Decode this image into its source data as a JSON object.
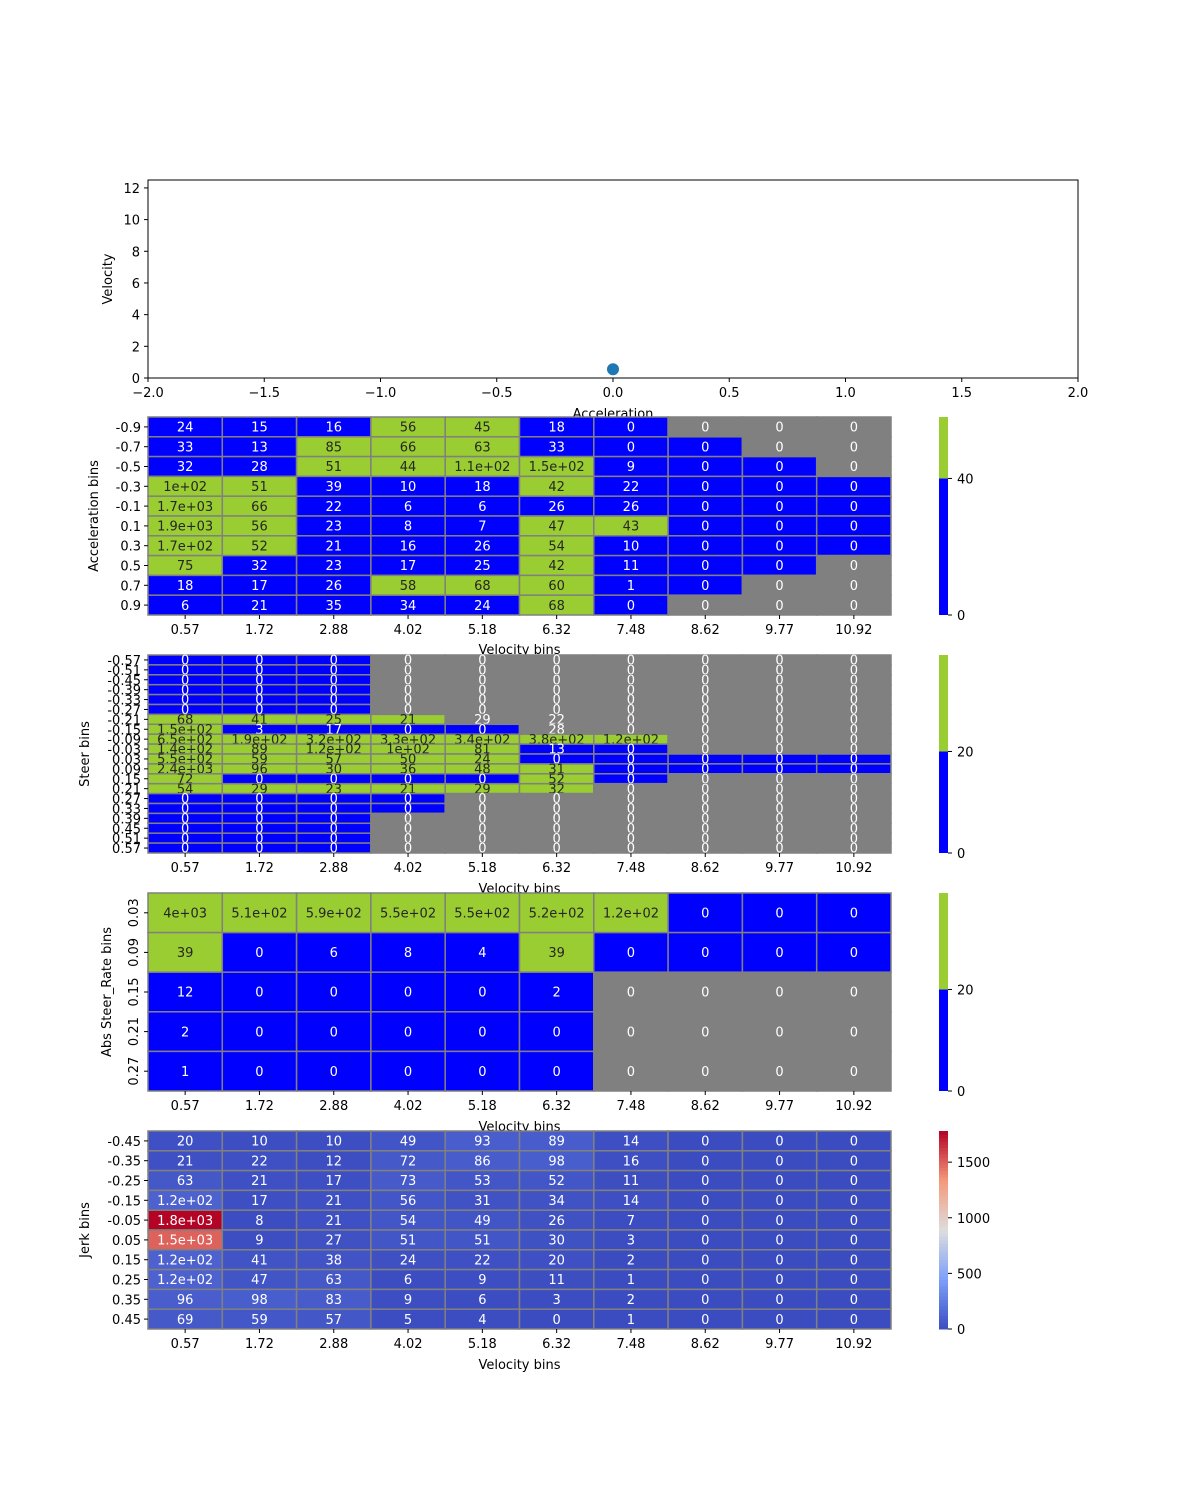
{
  "chart_data": [
    {
      "type": "scatter",
      "xlabel": "Acceleration",
      "ylabel": "Velocity",
      "xlim": [
        -2,
        2
      ],
      "ylim": [
        0,
        12.5
      ],
      "xticks": [
        "−2.0",
        "−1.5",
        "−1.0",
        "−0.5",
        "0.0",
        "0.5",
        "1.0",
        "1.5",
        "2.0"
      ],
      "yticks": [
        "0",
        "2",
        "4",
        "6",
        "8",
        "10",
        "12"
      ],
      "points": [
        {
          "x": 0.0,
          "y": 0.55
        }
      ],
      "point_color": "#1f77b4"
    },
    {
      "type": "heatmap",
      "xlabel": "Velocity bins",
      "ylabel": "Acceleration bins",
      "x_categories": [
        "0.57",
        "1.72",
        "2.88",
        "4.02",
        "5.18",
        "6.32",
        "7.48",
        "8.62",
        "9.77",
        "10.92"
      ],
      "y_categories": [
        "-0.9",
        "-0.7",
        "-0.5",
        "-0.3",
        "-0.1",
        "0.1",
        "0.3",
        "0.5",
        "0.7",
        "0.9"
      ],
      "labels": [
        [
          "24",
          "15",
          "16",
          "56",
          "45",
          "18",
          "0",
          "0",
          "0",
          "0"
        ],
        [
          "33",
          "13",
          "85",
          "66",
          "63",
          "33",
          "0",
          "0",
          "0",
          "0"
        ],
        [
          "32",
          "28",
          "51",
          "44",
          "1.1e+02",
          "1.5e+02",
          "9",
          "0",
          "0",
          "0"
        ],
        [
          "1e+02",
          "51",
          "39",
          "10",
          "18",
          "42",
          "22",
          "0",
          "0",
          "0"
        ],
        [
          "1.7e+03",
          "66",
          "22",
          "6",
          "6",
          "26",
          "26",
          "0",
          "0",
          "0"
        ],
        [
          "1.9e+03",
          "56",
          "23",
          "8",
          "7",
          "47",
          "43",
          "0",
          "0",
          "0"
        ],
        [
          "1.7e+02",
          "52",
          "21",
          "16",
          "26",
          "54",
          "10",
          "0",
          "0",
          "0"
        ],
        [
          "75",
          "32",
          "23",
          "17",
          "25",
          "42",
          "11",
          "0",
          "0",
          "0"
        ],
        [
          "18",
          "17",
          "26",
          "58",
          "68",
          "60",
          "1",
          "0",
          "0",
          "0"
        ],
        [
          "6",
          "21",
          "35",
          "34",
          "24",
          "68",
          "0",
          "0",
          "0",
          "0"
        ]
      ],
      "masked": [
        [
          0,
          0,
          0,
          0,
          0,
          0,
          0,
          1,
          1,
          1
        ],
        [
          0,
          0,
          0,
          0,
          0,
          0,
          0,
          0,
          1,
          1
        ],
        [
          0,
          0,
          0,
          0,
          0,
          0,
          0,
          0,
          0,
          1
        ],
        [
          0,
          0,
          0,
          0,
          0,
          0,
          0,
          0,
          0,
          0
        ],
        [
          0,
          0,
          0,
          0,
          0,
          0,
          0,
          0,
          0,
          0
        ],
        [
          0,
          0,
          0,
          0,
          0,
          0,
          0,
          0,
          0,
          0
        ],
        [
          0,
          0,
          0,
          0,
          0,
          0,
          0,
          0,
          0,
          0
        ],
        [
          0,
          0,
          0,
          0,
          0,
          0,
          0,
          0,
          0,
          1
        ],
        [
          0,
          0,
          0,
          0,
          0,
          0,
          0,
          0,
          1,
          1
        ],
        [
          0,
          0,
          0,
          0,
          0,
          0,
          0,
          1,
          1,
          1
        ]
      ],
      "threshold": 40,
      "colorbar_ticks": [
        "0",
        "40"
      ],
      "colorbar_range": [
        0,
        58
      ]
    },
    {
      "type": "heatmap",
      "xlabel": "Velocity bins",
      "ylabel": "Steer bins",
      "x_categories": [
        "0.57",
        "1.72",
        "2.88",
        "4.02",
        "5.18",
        "6.32",
        "7.48",
        "8.62",
        "9.77",
        "10.92"
      ],
      "y_categories": [
        "-0.57",
        "-0.51",
        "-0.45",
        "-0.39",
        "-0.33",
        "-0.27",
        "-0.21",
        "-0.15",
        "-0.09",
        "-0.03",
        "0.03",
        "0.09",
        "0.15",
        "0.21",
        "0.27",
        "0.33",
        "0.39",
        "0.45",
        "0.51",
        "0.57"
      ],
      "labels": [
        [
          "0",
          "0",
          "0",
          "0",
          "0",
          "0",
          "0",
          "0",
          "0",
          "0"
        ],
        [
          "0",
          "0",
          "0",
          "0",
          "0",
          "0",
          "0",
          "0",
          "0",
          "0"
        ],
        [
          "0",
          "0",
          "0",
          "0",
          "0",
          "0",
          "0",
          "0",
          "0",
          "0"
        ],
        [
          "0",
          "0",
          "0",
          "0",
          "0",
          "0",
          "0",
          "0",
          "0",
          "0"
        ],
        [
          "0",
          "0",
          "0",
          "0",
          "0",
          "0",
          "0",
          "0",
          "0",
          "0"
        ],
        [
          "0",
          "0",
          "0",
          "0",
          "0",
          "0",
          "0",
          "0",
          "0",
          "0"
        ],
        [
          "68",
          "41",
          "25",
          "21",
          "29",
          "22",
          "0",
          "0",
          "0",
          "0"
        ],
        [
          "1.5e+02",
          "3",
          "17",
          "0",
          "0",
          "28",
          "0",
          "0",
          "0",
          "0"
        ],
        [
          "6.5e+02",
          "1.9e+02",
          "3.2e+02",
          "3.3e+02",
          "3.4e+02",
          "3.8e+02",
          "1.2e+02",
          "0",
          "0",
          "0"
        ],
        [
          "1.4e+02",
          "89",
          "1.2e+02",
          "1e+02",
          "81",
          "13",
          "0",
          "0",
          "0",
          "0"
        ],
        [
          "5.5e+02",
          "59",
          "57",
          "50",
          "24",
          "0",
          "0",
          "0",
          "0",
          "0"
        ],
        [
          "2.4e+03",
          "96",
          "30",
          "36",
          "48",
          "31",
          "0",
          "0",
          "0",
          "0"
        ],
        [
          "72",
          "0",
          "0",
          "0",
          "0",
          "52",
          "0",
          "0",
          "0",
          "0"
        ],
        [
          "54",
          "29",
          "23",
          "21",
          "29",
          "32",
          "0",
          "0",
          "0",
          "0"
        ],
        [
          "0",
          "0",
          "0",
          "0",
          "0",
          "0",
          "0",
          "0",
          "0",
          "0"
        ],
        [
          "0",
          "0",
          "0",
          "0",
          "0",
          "0",
          "0",
          "0",
          "0",
          "0"
        ],
        [
          "0",
          "0",
          "0",
          "0",
          "0",
          "0",
          "0",
          "0",
          "0",
          "0"
        ],
        [
          "0",
          "0",
          "0",
          "0",
          "0",
          "0",
          "0",
          "0",
          "0",
          "0"
        ],
        [
          "0",
          "0",
          "0",
          "0",
          "0",
          "0",
          "0",
          "0",
          "0",
          "0"
        ],
        [
          "0",
          "0",
          "0",
          "0",
          "0",
          "0",
          "0",
          "0",
          "0",
          "0"
        ]
      ],
      "masked": [
        [
          0,
          0,
          0,
          1,
          1,
          1,
          1,
          1,
          1,
          1
        ],
        [
          0,
          0,
          0,
          1,
          1,
          1,
          1,
          1,
          1,
          1
        ],
        [
          0,
          0,
          0,
          1,
          1,
          1,
          1,
          1,
          1,
          1
        ],
        [
          0,
          0,
          0,
          1,
          1,
          1,
          1,
          1,
          1,
          1
        ],
        [
          0,
          0,
          0,
          1,
          1,
          1,
          1,
          1,
          1,
          1
        ],
        [
          0,
          0,
          0,
          1,
          1,
          1,
          1,
          1,
          1,
          1
        ],
        [
          0,
          0,
          0,
          0,
          1,
          1,
          1,
          1,
          1,
          1
        ],
        [
          0,
          0,
          0,
          0,
          0,
          1,
          1,
          1,
          1,
          1
        ],
        [
          0,
          0,
          0,
          0,
          0,
          0,
          0,
          1,
          1,
          1
        ],
        [
          0,
          0,
          0,
          0,
          0,
          0,
          0,
          1,
          1,
          1
        ],
        [
          0,
          0,
          0,
          0,
          0,
          0,
          0,
          0,
          0,
          0
        ],
        [
          0,
          0,
          0,
          0,
          0,
          0,
          0,
          0,
          0,
          0
        ],
        [
          0,
          0,
          0,
          0,
          0,
          0,
          0,
          1,
          1,
          1
        ],
        [
          0,
          0,
          0,
          0,
          0,
          0,
          1,
          1,
          1,
          1
        ],
        [
          0,
          0,
          0,
          0,
          1,
          1,
          1,
          1,
          1,
          1
        ],
        [
          0,
          0,
          0,
          0,
          1,
          1,
          1,
          1,
          1,
          1
        ],
        [
          0,
          0,
          0,
          1,
          1,
          1,
          1,
          1,
          1,
          1
        ],
        [
          0,
          0,
          0,
          1,
          1,
          1,
          1,
          1,
          1,
          1
        ],
        [
          0,
          0,
          0,
          1,
          1,
          1,
          1,
          1,
          1,
          1
        ],
        [
          0,
          0,
          0,
          1,
          1,
          1,
          1,
          1,
          1,
          1
        ]
      ],
      "threshold": 20,
      "colorbar_ticks": [
        "0",
        "20"
      ],
      "colorbar_range": [
        0,
        39
      ]
    },
    {
      "type": "heatmap",
      "xlabel": "Velocity bins",
      "ylabel": "Abs Steer_Rate bins",
      "x_categories": [
        "0.57",
        "1.72",
        "2.88",
        "4.02",
        "5.18",
        "6.32",
        "7.48",
        "8.62",
        "9.77",
        "10.92"
      ],
      "y_categories": [
        "0.03",
        "0.09",
        "0.15",
        "0.21",
        "0.27"
      ],
      "labels": [
        [
          "4e+03",
          "5.1e+02",
          "5.9e+02",
          "5.5e+02",
          "5.5e+02",
          "5.2e+02",
          "1.2e+02",
          "0",
          "0",
          "0"
        ],
        [
          "39",
          "0",
          "6",
          "8",
          "4",
          "39",
          "0",
          "0",
          "0",
          "0"
        ],
        [
          "12",
          "0",
          "0",
          "0",
          "0",
          "2",
          "0",
          "0",
          "0",
          "0"
        ],
        [
          "2",
          "0",
          "0",
          "0",
          "0",
          "0",
          "0",
          "0",
          "0",
          "0"
        ],
        [
          "1",
          "0",
          "0",
          "0",
          "0",
          "0",
          "0",
          "0",
          "0",
          "0"
        ]
      ],
      "masked": [
        [
          0,
          0,
          0,
          0,
          0,
          0,
          0,
          0,
          0,
          0
        ],
        [
          0,
          0,
          0,
          0,
          0,
          0,
          0,
          0,
          0,
          0
        ],
        [
          0,
          0,
          0,
          0,
          0,
          0,
          1,
          1,
          1,
          1
        ],
        [
          0,
          0,
          0,
          0,
          0,
          0,
          1,
          1,
          1,
          1
        ],
        [
          0,
          0,
          0,
          0,
          0,
          0,
          1,
          1,
          1,
          1
        ]
      ],
      "threshold": 20,
      "colorbar_ticks": [
        "0",
        "20"
      ],
      "colorbar_range": [
        0,
        39
      ]
    },
    {
      "type": "heatmap",
      "colormap": "coolwarm",
      "xlabel": "Velocity bins",
      "ylabel": "Jerk bins",
      "x_categories": [
        "0.57",
        "1.72",
        "2.88",
        "4.02",
        "5.18",
        "6.32",
        "7.48",
        "8.62",
        "9.77",
        "10.92"
      ],
      "y_categories": [
        "-0.45",
        "-0.35",
        "-0.25",
        "-0.15",
        "-0.05",
        "0.05",
        "0.15",
        "0.25",
        "0.35",
        "0.45"
      ],
      "values": [
        [
          20,
          10,
          10,
          49,
          93,
          89,
          14,
          0,
          0,
          0
        ],
        [
          21,
          22,
          12,
          72,
          86,
          98,
          16,
          0,
          0,
          0
        ],
        [
          63,
          21,
          17,
          73,
          53,
          52,
          11,
          0,
          0,
          0
        ],
        [
          120,
          17,
          21,
          56,
          31,
          34,
          14,
          0,
          0,
          0
        ],
        [
          1800,
          8,
          21,
          54,
          49,
          26,
          7,
          0,
          0,
          0
        ],
        [
          1500,
          9,
          27,
          51,
          51,
          30,
          3,
          0,
          0,
          0
        ],
        [
          120,
          41,
          38,
          24,
          22,
          20,
          2,
          0,
          0,
          0
        ],
        [
          120,
          47,
          63,
          6,
          9,
          11,
          1,
          0,
          0,
          0
        ],
        [
          96,
          98,
          83,
          9,
          6,
          3,
          2,
          0,
          0,
          0
        ],
        [
          69,
          59,
          57,
          5,
          4,
          0,
          1,
          0,
          0,
          0
        ]
      ],
      "labels": [
        [
          "20",
          "10",
          "10",
          "49",
          "93",
          "89",
          "14",
          "0",
          "0",
          "0"
        ],
        [
          "21",
          "22",
          "12",
          "72",
          "86",
          "98",
          "16",
          "0",
          "0",
          "0"
        ],
        [
          "63",
          "21",
          "17",
          "73",
          "53",
          "52",
          "11",
          "0",
          "0",
          "0"
        ],
        [
          "1.2e+02",
          "17",
          "21",
          "56",
          "31",
          "34",
          "14",
          "0",
          "0",
          "0"
        ],
        [
          "1.8e+03",
          "8",
          "21",
          "54",
          "49",
          "26",
          "7",
          "0",
          "0",
          "0"
        ],
        [
          "1.5e+03",
          "9",
          "27",
          "51",
          "51",
          "30",
          "3",
          "0",
          "0",
          "0"
        ],
        [
          "1.2e+02",
          "41",
          "38",
          "24",
          "22",
          "20",
          "2",
          "0",
          "0",
          "0"
        ],
        [
          "1.2e+02",
          "47",
          "63",
          "6",
          "9",
          "11",
          "1",
          "0",
          "0",
          "0"
        ],
        [
          "96",
          "98",
          "83",
          "9",
          "6",
          "3",
          "2",
          "0",
          "0",
          "0"
        ],
        [
          "69",
          "59",
          "57",
          "5",
          "4",
          "0",
          "1",
          "0",
          "0",
          "0"
        ]
      ],
      "colorbar_ticks": [
        "0",
        "500",
        "1000",
        "1500"
      ],
      "colorbar_range": [
        0,
        1780
      ]
    }
  ],
  "colors": {
    "low": "#0000ff",
    "high": "#9acd32",
    "masked": "#808080",
    "grid": "#808080",
    "scatter": "#1f77b4"
  }
}
